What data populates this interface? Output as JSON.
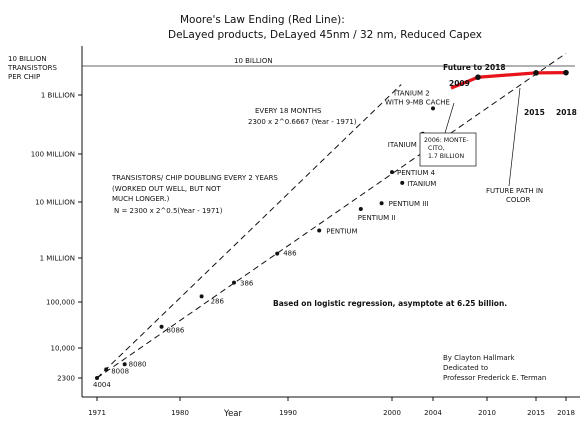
{
  "chart_data": {
    "type": "scatter",
    "title": "Moore's Law Ending (Red Line):",
    "subtitle": "DeLayed products, DeLayed 45nm / 32 nm, Reduced Capex",
    "ylabel": "10 BILLION TRANSISTORS PER CHIP",
    "xlabel": "Year",
    "yscale": "log",
    "xlim": [
      1971,
      2018
    ],
    "ylim": [
      2300,
      10000000000
    ],
    "x_ticks": [
      "1971",
      "1980",
      "1990",
      "2000",
      "2004",
      "2010",
      "2015",
      "2018"
    ],
    "y_ticks": [
      {
        "label": "10 BILLION",
        "value": 10000000000
      },
      {
        "label": "1 BILLION",
        "value": 1000000000
      },
      {
        "label": "100 MILLION",
        "value": 100000000
      },
      {
        "label": "10 MILLION",
        "value": 10000000
      },
      {
        "label": "1 MILLION",
        "value": 1000000
      },
      {
        "label": "100,000",
        "value": 100000
      },
      {
        "label": "10,000",
        "value": 10000
      },
      {
        "label": "2300",
        "value": 2300
      }
    ],
    "capacity_line": {
      "label": "10 BILLION",
      "value": 10000000000
    },
    "processors": [
      {
        "name": "4004",
        "year": 1971,
        "transistors": 2300
      },
      {
        "name": "8008",
        "year": 1972,
        "transistors": 3500
      },
      {
        "name": "8080",
        "year": 1974,
        "transistors": 4500
      },
      {
        "name": "8086",
        "year": 1978,
        "transistors": 29000
      },
      {
        "name": "286",
        "year": 1982,
        "transistors": 134000
      },
      {
        "name": "386",
        "year": 1985,
        "transistors": 275000
      },
      {
        "name": "486",
        "year": 1989,
        "transistors": 1200000
      },
      {
        "name": "PENTIUM",
        "year": 1993,
        "transistors": 3100000
      },
      {
        "name": "PENTIUM II",
        "year": 1997,
        "transistors": 7500000
      },
      {
        "name": "PENTIUM III",
        "year": 1999,
        "transistors": 9500000
      },
      {
        "name": "PENTIUM 4",
        "year": 2000,
        "transistors": 42000000
      },
      {
        "name": "ITANIUM",
        "year": 2001,
        "transistors": 25000000
      },
      {
        "name": "ITANIUM 2",
        "year": 2003,
        "transistors": 220000000
      },
      {
        "name": "ITANIUM 2 WITH 9-MB CACHE",
        "year": 2004,
        "transistors": 592000000
      }
    ],
    "series": [
      {
        "name": "Moore's Law Ending (Red Line)",
        "x": [
          2006,
          2009,
          2015,
          2018
        ],
        "y": [
          1720000000,
          4100000000,
          5800000000,
          5900000000
        ],
        "color": "#e8141c"
      }
    ],
    "trend_lines": [
      {
        "label_lines": [
          "EVERY 18 MONTHS",
          "2300 x 2^0.6667 (Year - 1971)"
        ],
        "growth_exponent": 0.6667
      },
      {
        "label_lines": [
          "TRANSISTORS/ CHIP DOUBLING EVERY 2 YEARS",
          "(WORKED OUT WELL, BUT NOT",
          "MUCH LONGER.)",
          "N = 2300 x 2^0.5(Year - 1971)"
        ],
        "growth_exponent": 0.5
      }
    ],
    "annotations": {
      "future_to_2018": "Future to 2018",
      "year_2009": "2009",
      "year_2015": "2015",
      "year_2018": "2018",
      "montecito": [
        "2006: MONTE-",
        "CITO,",
        "1.7 BILLION"
      ],
      "future_path": [
        "FUTURE PATH IN",
        "COLOR"
      ],
      "logistic_note": "Based on logistic regression, asymptote at 6.25 billion.",
      "credits": [
        "By Clayton Hallmark",
        "Dedicated to",
        "Professor Frederick E. Terman"
      ]
    }
  }
}
